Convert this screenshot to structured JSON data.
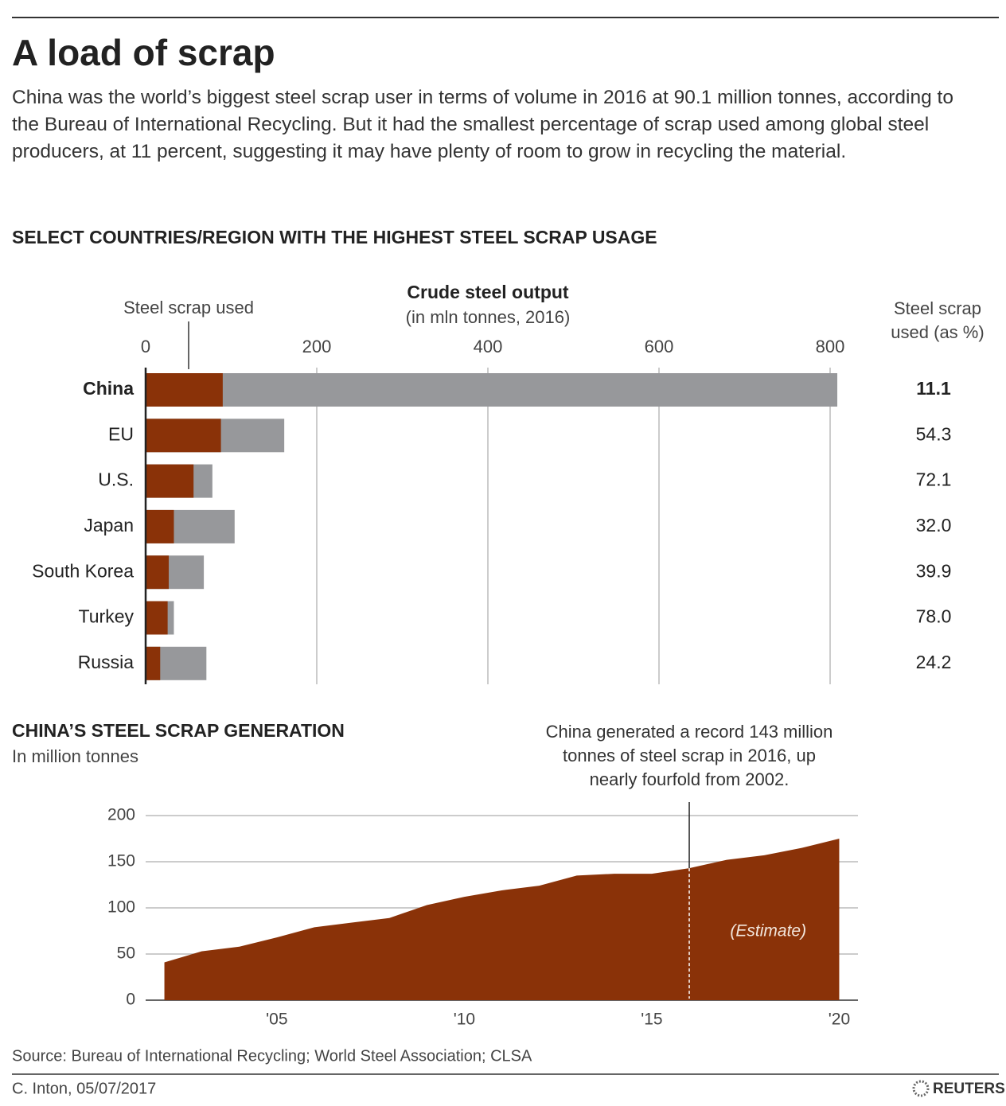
{
  "title": "A load of scrap",
  "description": "China was the world’s biggest steel scrap user in terms of volume in 2016 at 90.1 million tonnes, according to the Bureau of International Recycling. But it had the smallest percentage of scrap used among global steel producers, at 11 percent, suggesting it may have plenty of room to grow in recycling the material.",
  "chart_data": [
    {
      "type": "bar",
      "orientation": "horizontal",
      "barmode": "overlay",
      "title": "SELECT COUNTRIES/REGION WITH THE HIGHEST STEEL SCRAP USAGE",
      "xlabel_sub": "(in mln tonnes, 2016)",
      "categories": [
        "China",
        "EU",
        "U.S.",
        "Japan",
        "South Korea",
        "Turkey",
        "Russia"
      ],
      "series": [
        {
          "name": "Crude steel output",
          "color": "#97989b",
          "values": [
            808.4,
            162,
            78,
            104,
            68,
            33,
            71
          ]
        },
        {
          "name": "Steel scrap used",
          "color": "#8a3208",
          "values": [
            90.1,
            88,
            56,
            33,
            27,
            25.7,
            17
          ]
        }
      ],
      "xlim": [
        0,
        810
      ],
      "xticks": [
        0,
        200,
        400,
        600,
        800
      ],
      "grid": true,
      "scrap_share": {
        "title": [
          "Steel scrap",
          "used (as %)"
        ],
        "values": [
          11.1,
          54.3,
          72.1,
          32,
          39.9,
          78,
          24.2
        ],
        "value_labels": [
          "11.1",
          "54.3",
          "72.1",
          "32.0",
          "39.9",
          "78.0",
          "24.2"
        ]
      }
    },
    {
      "type": "area",
      "title": "CHINA’S STEEL SCRAP GENERATION",
      "subtitle": "In million tonnes",
      "x": [
        2002,
        2003,
        2004,
        2005,
        2006,
        2007,
        2008,
        2009,
        2010,
        2011,
        2012,
        2013,
        2014,
        2015,
        2016,
        2017,
        2018,
        2019,
        2020
      ],
      "values": [
        41,
        53,
        58,
        68,
        79,
        84,
        89,
        103,
        112,
        119,
        124,
        135,
        137,
        137,
        143,
        152,
        157,
        165,
        175
      ],
      "color": "#8a3208",
      "xlim": [
        2001.5,
        2020.5
      ],
      "xticks": [
        {
          "value": 2005,
          "label": "'05"
        },
        {
          "value": 2010,
          "label": "'10"
        },
        {
          "value": 2015,
          "label": "'15"
        },
        {
          "value": 2020,
          "label": "'20"
        }
      ],
      "ylim": [
        0,
        200
      ],
      "yticks": [
        0,
        50,
        100,
        150,
        200
      ],
      "grid": true,
      "annotation": [
        "China generated a record 143 million",
        "tonnes of steel scrap in 2016, up",
        "nearly fourfold from 2002."
      ],
      "estimate_start": 2016,
      "estimate_label": "(Estimate)"
    }
  ],
  "source": "Source: Bureau of International Recycling; World Steel Association; CLSA",
  "credit": "C. Inton, 05/07/2017",
  "logo": "REUTERS"
}
